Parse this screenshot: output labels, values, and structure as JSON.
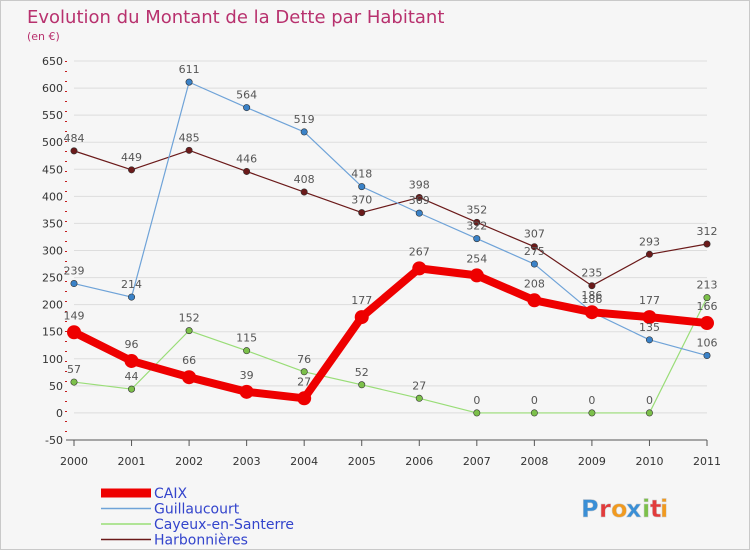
{
  "header": {
    "title": "Evolution du Montant de la Dette par Habitant",
    "unit": "(en €)"
  },
  "logo": {
    "text": "Proxiti",
    "letters": [
      "P",
      "r",
      "o",
      "x",
      "i",
      "t",
      "i"
    ],
    "colors": [
      "#3a8fd6",
      "#e23b3b",
      "#f19a1f",
      "#3a8fd6",
      "#7cc04a",
      "#e23b3b",
      "#f19a1f"
    ]
  },
  "chart_data": {
    "type": "line",
    "title": "Evolution du Montant de la Dette par Habitant",
    "subtitle": "(en €)",
    "xlabel": "",
    "ylabel": "",
    "x": [
      "2000",
      "2001",
      "2002",
      "2003",
      "2004",
      "2005",
      "2006",
      "2007",
      "2008",
      "2009",
      "2010",
      "2011"
    ],
    "ylim": [
      -50,
      650
    ],
    "yticks": [
      -50,
      0,
      50,
      100,
      150,
      200,
      250,
      300,
      350,
      400,
      450,
      500,
      550,
      600,
      650
    ],
    "grid": "horizontal",
    "legend_position": "bottom-left",
    "series": [
      {
        "name": "Harbonnières",
        "color": "#6b1a1a",
        "marker": "#6b1a1a",
        "width": 1.2,
        "values": [
          484,
          449,
          485,
          446,
          408,
          370,
          398,
          352,
          307,
          235,
          293,
          312
        ]
      },
      {
        "name": "Cayeux-en-Santerre",
        "color": "#99dd77",
        "marker": "#7cc04a",
        "width": 1.2,
        "values": [
          57,
          44,
          152,
          115,
          76,
          52,
          27,
          0,
          0,
          0,
          0,
          213
        ]
      },
      {
        "name": "Guillaucourt",
        "color": "#6fa3d8",
        "marker": "#3a82c8",
        "width": 1.2,
        "values": [
          239,
          214,
          611,
          564,
          519,
          418,
          369,
          322,
          275,
          186,
          135,
          106
        ]
      },
      {
        "name": "CAIX",
        "color": "#ee0000",
        "marker": "#ee0000",
        "width": 8,
        "values": [
          149,
          96,
          66,
          39,
          27,
          177,
          267,
          254,
          208,
          186,
          177,
          166
        ]
      }
    ],
    "legend_order": [
      "CAIX",
      "Guillaucourt",
      "Cayeux-en-Santerre",
      "Harbonnières"
    ]
  }
}
